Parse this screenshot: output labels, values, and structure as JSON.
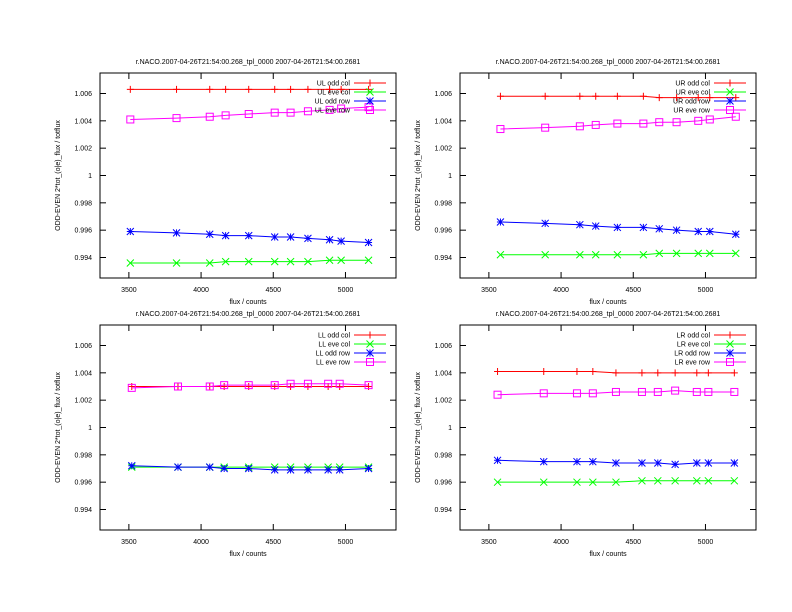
{
  "chart_data": [
    {
      "type": "line",
      "panel": "upper-left",
      "title": "r.NACO.2007-04-26T21:54:00.268_tpl_0000 2007-04-26T21:54:00.2681",
      "xlabel": "flux / counts",
      "ylabel": "ODD-EVEN 2*tot_(o|e)_flux / totflux",
      "xlim": [
        3300,
        5350
      ],
      "ylim": [
        0.9925,
        1.0075
      ],
      "xticks": [
        3500,
        4000,
        4500,
        5000
      ],
      "xtick_labels": [
        "3500",
        "4000",
        "4500",
        "5000"
      ],
      "yticks": [
        0.994,
        0.996,
        0.998,
        1,
        1.002,
        1.004,
        1.006
      ],
      "ytick_labels": [
        "0.994",
        "0.996",
        "0.998",
        "1",
        "1.002",
        "1.004",
        "1.006"
      ],
      "legend_position": "top-right",
      "x": [
        3510,
        3830,
        4060,
        4170,
        4330,
        4510,
        4620,
        4740,
        4890,
        4970,
        5160
      ],
      "series": [
        {
          "name": "UL odd col",
          "color": "#ff0000",
          "marker": "plus",
          "values": [
            1.0063,
            1.0063,
            1.0063,
            1.0063,
            1.0063,
            1.0063,
            1.0063,
            1.0063,
            1.0063,
            1.0063,
            1.0063
          ]
        },
        {
          "name": "UL eve col",
          "color": "#00ff00",
          "marker": "cross",
          "values": [
            0.9936,
            0.9936,
            0.9936,
            0.9937,
            0.9937,
            0.9937,
            0.9937,
            0.9937,
            0.9938,
            0.9938,
            0.9938
          ]
        },
        {
          "name": "UL odd row",
          "color": "#0000ff",
          "marker": "star",
          "values": [
            0.9959,
            0.9958,
            0.9957,
            0.9956,
            0.9956,
            0.9955,
            0.9955,
            0.9954,
            0.9953,
            0.9952,
            0.9951
          ]
        },
        {
          "name": "UL eve row",
          "color": "#ff00ff",
          "marker": "square",
          "values": [
            1.0041,
            1.0042,
            1.0043,
            1.0044,
            1.0045,
            1.0046,
            1.0046,
            1.0047,
            1.0048,
            1.0049,
            1.005
          ]
        }
      ]
    },
    {
      "type": "line",
      "panel": "upper-right",
      "title": "r.NACO.2007-04-26T21:54:00.268_tpl_0000 2007-04-26T21:54:00.2681",
      "xlabel": "flux / counts",
      "ylabel": "ODD-EVEN 2*tot_(o|e)_flux / totflux",
      "xlim": [
        3300,
        5350
      ],
      "ylim": [
        0.9925,
        1.0075
      ],
      "xticks": [
        3500,
        4000,
        4500,
        5000
      ],
      "xtick_labels": [
        "3500",
        "4000",
        "4500",
        "5000"
      ],
      "yticks": [
        0.994,
        0.996,
        0.998,
        1,
        1.002,
        1.004,
        1.006
      ],
      "ytick_labels": [
        "0.994",
        "0.996",
        "0.998",
        "1",
        "1.002",
        "1.004",
        "1.006"
      ],
      "legend_position": "top-right",
      "x": [
        3580,
        3890,
        4130,
        4240,
        4390,
        4570,
        4680,
        4800,
        4950,
        5030,
        5210
      ],
      "series": [
        {
          "name": "UR odd col",
          "color": "#ff0000",
          "marker": "plus",
          "values": [
            1.0058,
            1.0058,
            1.0058,
            1.0058,
            1.0058,
            1.0058,
            1.0057,
            1.0057,
            1.0057,
            1.0057,
            1.0057
          ]
        },
        {
          "name": "UR eve col",
          "color": "#00ff00",
          "marker": "cross",
          "values": [
            0.9942,
            0.9942,
            0.9942,
            0.9942,
            0.9942,
            0.9942,
            0.9943,
            0.9943,
            0.9943,
            0.9943,
            0.9943
          ]
        },
        {
          "name": "UR odd row",
          "color": "#0000ff",
          "marker": "star",
          "values": [
            0.9966,
            0.9965,
            0.9964,
            0.9963,
            0.9962,
            0.9962,
            0.9961,
            0.996,
            0.9959,
            0.9959,
            0.9957
          ]
        },
        {
          "name": "UR eve row",
          "color": "#ff00ff",
          "marker": "square",
          "values": [
            1.0034,
            1.0035,
            1.0036,
            1.0037,
            1.0038,
            1.0038,
            1.0039,
            1.0039,
            1.004,
            1.0041,
            1.0043
          ]
        }
      ]
    },
    {
      "type": "line",
      "panel": "lower-left",
      "title": "r.NACO.2007-04-26T21:54:00.268_tpl_0000 2007-04-26T21:54:00.2681",
      "xlabel": "flux / counts",
      "ylabel": "ODD-EVEN 2*tot_(o|e)_flux / totflux",
      "xlim": [
        3300,
        5350
      ],
      "ylim": [
        0.9925,
        1.0075
      ],
      "xticks": [
        3500,
        4000,
        4500,
        5000
      ],
      "xtick_labels": [
        "3500",
        "4000",
        "4500",
        "5000"
      ],
      "yticks": [
        0.994,
        0.996,
        0.998,
        1,
        1.002,
        1.004,
        1.006
      ],
      "ytick_labels": [
        "0.994",
        "0.996",
        "0.998",
        "1",
        "1.002",
        "1.004",
        "1.006"
      ],
      "legend_position": "top-right",
      "x": [
        3520,
        3840,
        4060,
        4160,
        4330,
        4510,
        4620,
        4740,
        4880,
        4960,
        5160
      ],
      "series": [
        {
          "name": "LL odd col",
          "color": "#ff0000",
          "marker": "plus",
          "values": [
            1.003,
            1.003,
            1.003,
            1.003,
            1.003,
            1.003,
            1.003,
            1.003,
            1.003,
            1.003,
            1.003
          ]
        },
        {
          "name": "LL eve col",
          "color": "#00ff00",
          "marker": "cross",
          "values": [
            0.9971,
            0.9971,
            0.9971,
            0.9971,
            0.9971,
            0.9971,
            0.9971,
            0.9971,
            0.9971,
            0.9971,
            0.9971
          ]
        },
        {
          "name": "LL odd row",
          "color": "#0000ff",
          "marker": "star",
          "values": [
            0.9972,
            0.9971,
            0.9971,
            0.997,
            0.997,
            0.9969,
            0.9969,
            0.9969,
            0.9969,
            0.9969,
            0.997
          ]
        },
        {
          "name": "LL eve row",
          "color": "#ff00ff",
          "marker": "square",
          "values": [
            1.0029,
            1.003,
            1.003,
            1.0031,
            1.0031,
            1.0031,
            1.0032,
            1.0032,
            1.0032,
            1.0032,
            1.0031
          ]
        }
      ]
    },
    {
      "type": "line",
      "panel": "lower-right",
      "title": "r.NACO.2007-04-26T21:54:00.268_tpl_0000 2007-04-26T21:54:00.2681",
      "xlabel": "flux / counts",
      "ylabel": "ODD-EVEN 2*tot_(o|e)_flux / totflux",
      "xlim": [
        3300,
        5350
      ],
      "ylim": [
        0.9925,
        1.0075
      ],
      "xticks": [
        3500,
        4000,
        4500,
        5000
      ],
      "xtick_labels": [
        "3500",
        "4000",
        "4500",
        "5000"
      ],
      "yticks": [
        0.994,
        0.996,
        0.998,
        1,
        1.002,
        1.004,
        1.006
      ],
      "ytick_labels": [
        "0.994",
        "0.996",
        "0.998",
        "1",
        "1.002",
        "1.004",
        "1.006"
      ],
      "legend_position": "top-right",
      "x": [
        3560,
        3880,
        4110,
        4220,
        4380,
        4560,
        4670,
        4790,
        4940,
        5020,
        5200
      ],
      "series": [
        {
          "name": "LR odd col",
          "color": "#ff0000",
          "marker": "plus",
          "values": [
            1.0041,
            1.0041,
            1.0041,
            1.0041,
            1.004,
            1.004,
            1.004,
            1.004,
            1.004,
            1.004,
            1.004
          ]
        },
        {
          "name": "LR eve col",
          "color": "#00ff00",
          "marker": "cross",
          "values": [
            0.996,
            0.996,
            0.996,
            0.996,
            0.996,
            0.9961,
            0.9961,
            0.9961,
            0.9961,
            0.9961,
            0.9961
          ]
        },
        {
          "name": "LR odd row",
          "color": "#0000ff",
          "marker": "star",
          "values": [
            0.9976,
            0.9975,
            0.9975,
            0.9975,
            0.9974,
            0.9974,
            0.9974,
            0.9973,
            0.9974,
            0.9974,
            0.9974
          ]
        },
        {
          "name": "LR eve row",
          "color": "#ff00ff",
          "marker": "square",
          "values": [
            1.0024,
            1.0025,
            1.0025,
            1.0025,
            1.0026,
            1.0026,
            1.0026,
            1.0027,
            1.0026,
            1.0026,
            1.0026
          ]
        }
      ]
    }
  ]
}
